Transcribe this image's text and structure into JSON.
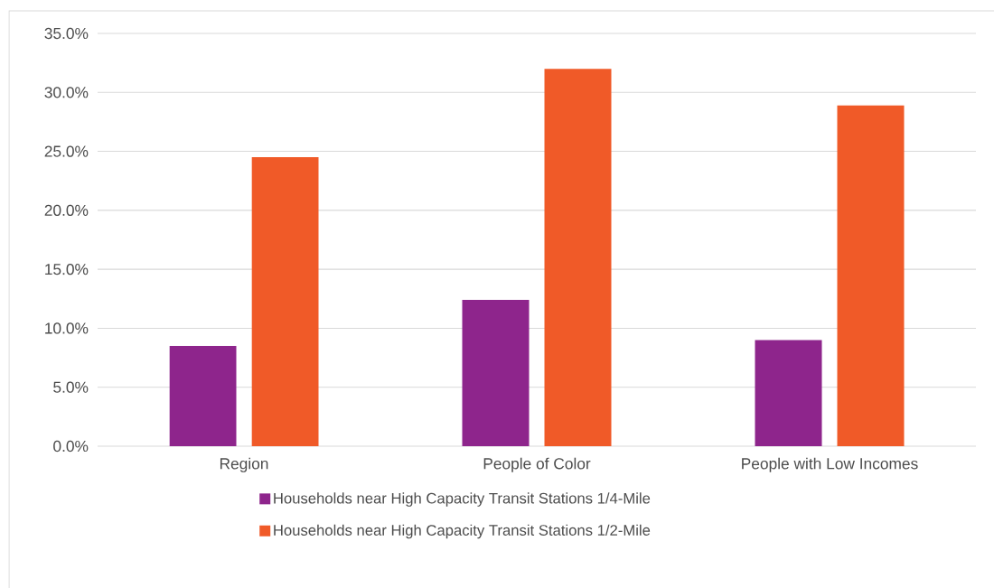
{
  "chart_data": {
    "type": "bar",
    "categories": [
      "Region",
      "People of Color",
      "People with Low Incomes"
    ],
    "series": [
      {
        "name": "Households near High Capacity Transit Stations 1/4-Mile",
        "color": "#8e258c",
        "values": [
          8.5,
          12.4,
          9.0
        ]
      },
      {
        "name": "Households near High Capacity Transit Stations 1/2-Mile",
        "color": "#f05a28",
        "values": [
          24.5,
          32.0,
          28.9
        ]
      }
    ],
    "ylim": [
      0,
      35
    ],
    "yticks": [
      {
        "value": 0,
        "label": "0.0%"
      },
      {
        "value": 5,
        "label": "5.0%"
      },
      {
        "value": 10,
        "label": "10.0%"
      },
      {
        "value": 15,
        "label": "15.0%"
      },
      {
        "value": 20,
        "label": "20.0%"
      },
      {
        "value": 25,
        "label": "25.0%"
      },
      {
        "value": 30,
        "label": "30.0%"
      },
      {
        "value": 35,
        "label": "35.0%"
      }
    ],
    "grid": "y",
    "legend": "bottom"
  }
}
